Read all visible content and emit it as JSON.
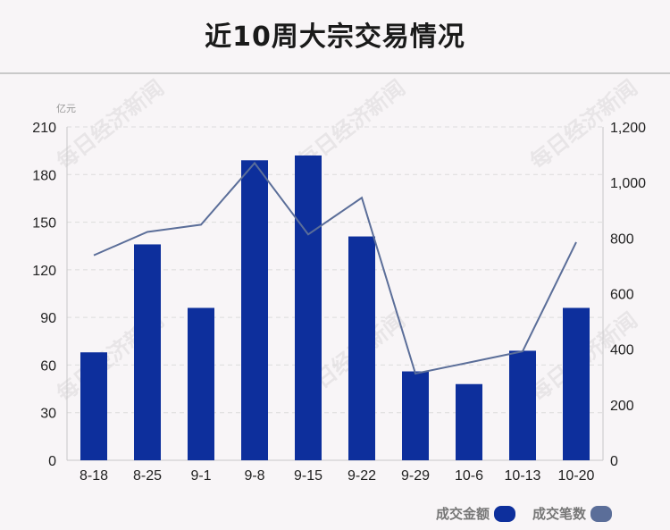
{
  "chart_data": {
    "type": "bar",
    "title": "近10周大宗交易情况",
    "y_unit": "亿元",
    "categories": [
      "8-18",
      "8-25",
      "9-1",
      "9-8",
      "9-15",
      "9-22",
      "9-29",
      "10-6",
      "10-13",
      "10-20"
    ],
    "series": [
      {
        "name": "成交金额",
        "type": "bar",
        "axis": "left",
        "color": "#0d2f9c",
        "values": [
          68,
          136,
          96,
          189,
          192,
          141,
          56,
          48,
          69,
          96
        ]
      },
      {
        "name": "成交笔数",
        "type": "line",
        "axis": "right",
        "color": "#5b6e99",
        "values": [
          738,
          822,
          848,
          1070,
          813,
          945,
          312,
          352,
          392,
          785
        ]
      }
    ],
    "ylim": [
      0,
      210
    ],
    "yticks": [
      "0",
      "30",
      "60",
      "90",
      "120",
      "150",
      "180",
      "210"
    ],
    "y2lim": [
      0,
      1200
    ],
    "y2ticks": [
      "0",
      "200",
      "400",
      "600",
      "800",
      "1,000",
      "1,200"
    ],
    "legend_position": "bottom-right",
    "grid": true
  },
  "watermark_text": "每日经济新闻"
}
